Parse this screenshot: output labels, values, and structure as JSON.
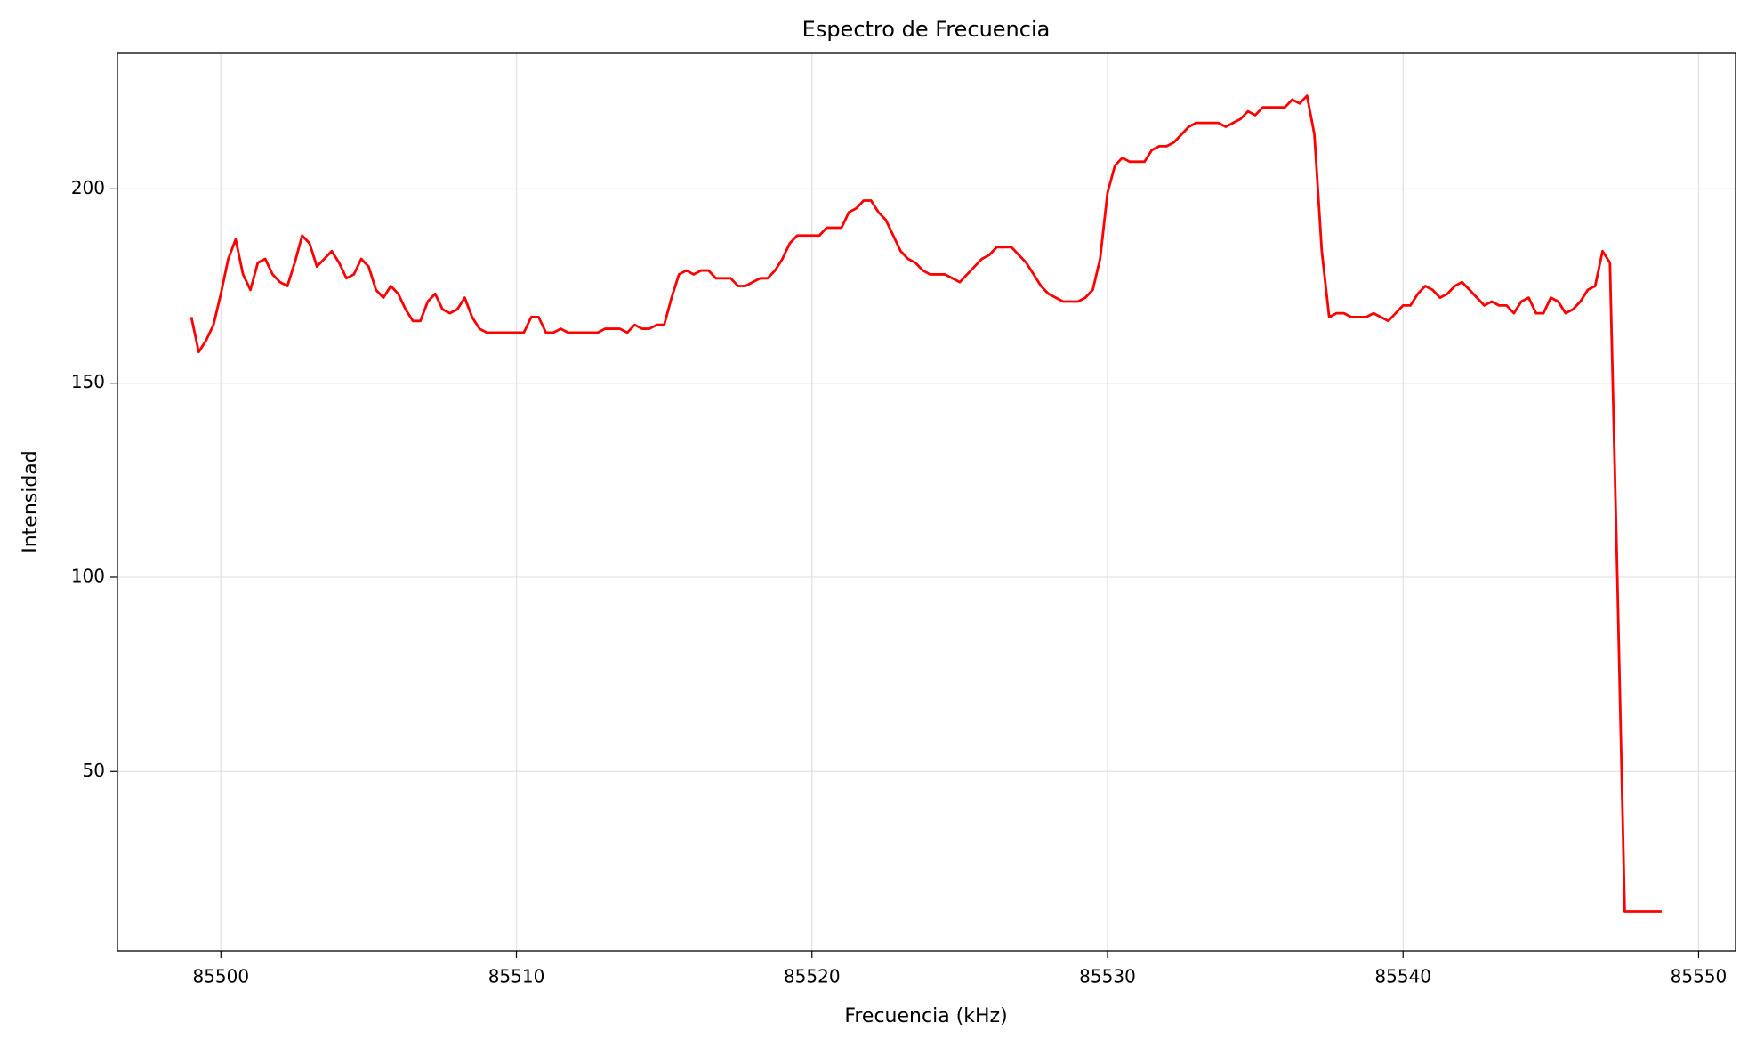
{
  "chart_data": {
    "type": "line",
    "title": "Espectro de Frecuencia",
    "x_label": "Frecuencia (kHz)",
    "y_label": "Intensidad",
    "x": [
      85499,
      85499.25,
      85499.5,
      85499.75,
      85500,
      85500.25,
      85500.5,
      85500.75,
      85501,
      85501.25,
      85501.5,
      85501.75,
      85502,
      85502.25,
      85502.5,
      85502.75,
      85503,
      85503.25,
      85503.5,
      85503.75,
      85504,
      85504.25,
      85504.5,
      85504.75,
      85505,
      85505.25,
      85505.5,
      85505.75,
      85506,
      85506.25,
      85506.5,
      85506.75,
      85507,
      85507.25,
      85507.5,
      85507.75,
      85508,
      85508.25,
      85508.5,
      85508.75,
      85509,
      85509.25,
      85509.5,
      85509.75,
      85510,
      85510.25,
      85510.5,
      85510.75,
      85511,
      85511.25,
      85511.5,
      85511.75,
      85512,
      85512.25,
      85512.5,
      85512.75,
      85513,
      85513.25,
      85513.5,
      85513.75,
      85514,
      85514.25,
      85514.5,
      85514.75,
      85515,
      85515.25,
      85515.5,
      85515.75,
      85516,
      85516.25,
      85516.5,
      85516.75,
      85517,
      85517.25,
      85517.5,
      85517.75,
      85518,
      85518.25,
      85518.5,
      85518.75,
      85519,
      85519.25,
      85519.5,
      85519.75,
      85520,
      85520.25,
      85520.5,
      85520.75,
      85521,
      85521.25,
      85521.5,
      85521.75,
      85522,
      85522.25,
      85522.5,
      85522.75,
      85523,
      85523.25,
      85523.5,
      85523.75,
      85524,
      85524.25,
      85524.5,
      85524.75,
      85525,
      85525.25,
      85525.5,
      85525.75,
      85526,
      85526.25,
      85526.5,
      85526.75,
      85527,
      85527.25,
      85527.5,
      85527.75,
      85528,
      85528.25,
      85528.5,
      85528.75,
      85529,
      85529.25,
      85529.5,
      85529.75,
      85530,
      85530.25,
      85530.5,
      85530.75,
      85531,
      85531.25,
      85531.5,
      85531.75,
      85532,
      85532.25,
      85532.5,
      85532.75,
      85533,
      85533.25,
      85533.5,
      85533.75,
      85534,
      85534.25,
      85534.5,
      85534.75,
      85535,
      85535.25,
      85535.5,
      85535.75,
      85536,
      85536.25,
      85536.5,
      85536.75,
      85537,
      85537.25,
      85537.5,
      85537.75,
      85538,
      85538.25,
      85538.5,
      85538.75,
      85539,
      85539.25,
      85539.5,
      85539.75,
      85540,
      85540.25,
      85540.5,
      85540.75,
      85541,
      85541.25,
      85541.5,
      85541.75,
      85542,
      85542.25,
      85542.5,
      85542.75,
      85543,
      85543.25,
      85543.5,
      85543.75,
      85544,
      85544.25,
      85544.5,
      85544.75,
      85545,
      85545.25,
      85545.5,
      85545.75,
      85546,
      85546.25,
      85546.5,
      85546.75,
      85547,
      85547.25,
      85547.5,
      85547.75,
      85548,
      85548.25,
      85548.5,
      85548.75
    ],
    "series": [
      {
        "color": "#ff0000",
        "values": [
          167,
          158,
          161,
          165,
          173,
          182,
          187,
          178,
          174,
          181,
          182,
          178,
          176,
          175,
          181,
          188,
          186,
          180,
          182,
          184,
          181,
          177,
          178,
          182,
          180,
          174,
          172,
          175,
          173,
          169,
          166,
          166,
          171,
          173,
          169,
          168,
          169,
          172,
          167,
          164,
          163,
          163,
          163,
          163,
          163,
          163,
          167,
          167,
          163,
          163,
          164,
          163,
          163,
          163,
          163,
          163,
          164,
          164,
          164,
          163,
          165,
          164,
          164,
          165,
          165,
          172,
          178,
          179,
          178,
          179,
          179,
          177,
          177,
          177,
          175,
          175,
          176,
          177,
          177,
          179,
          182,
          186,
          188,
          188,
          188,
          188,
          190,
          190,
          190,
          194,
          195,
          197,
          197,
          194,
          192,
          188,
          184,
          182,
          181,
          179,
          178,
          178,
          178,
          177,
          176,
          178,
          180,
          182,
          183,
          185,
          185,
          185,
          183,
          181,
          178,
          175,
          173,
          172,
          171,
          171,
          171,
          172,
          174,
          182,
          199,
          206,
          208,
          207,
          207,
          207,
          210,
          211,
          211,
          212,
          214,
          216,
          217,
          217,
          217,
          217,
          216,
          217,
          218,
          220,
          219,
          221,
          221,
          221,
          221,
          223,
          222,
          224,
          214,
          184,
          167,
          168,
          168,
          167,
          167,
          167,
          168,
          167,
          166,
          168,
          170,
          170,
          173,
          175,
          174,
          172,
          173,
          175,
          176,
          174,
          172,
          170,
          171,
          170,
          170,
          168,
          171,
          172,
          168,
          168,
          172,
          171,
          168,
          169,
          171,
          174,
          175,
          184,
          181,
          100,
          14,
          14,
          14,
          14,
          14,
          14
        ]
      }
    ],
    "xlim": [
      85496.5,
      85551.25
    ],
    "ylim": [
      3.8,
      234.9
    ],
    "xticks": [
      85500,
      85510,
      85520,
      85530,
      85540,
      85550
    ],
    "yticks": [
      50,
      100,
      150,
      200
    ],
    "grid": true
  }
}
